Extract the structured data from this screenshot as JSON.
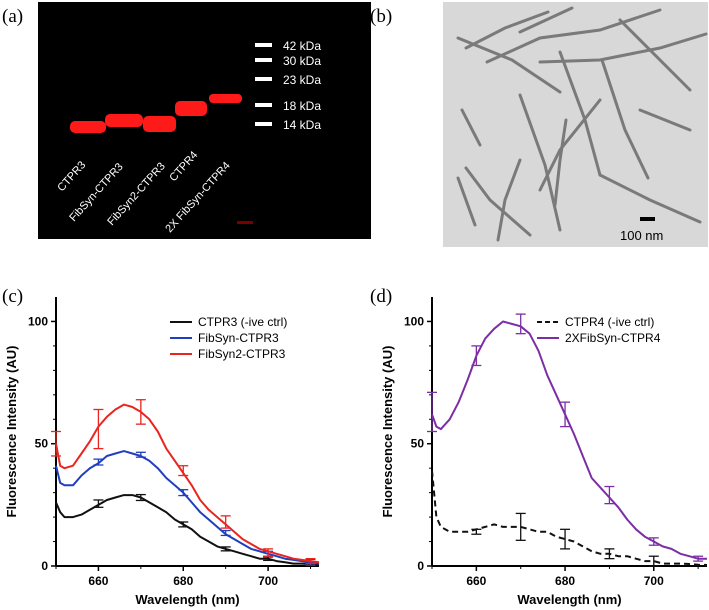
{
  "panel_letters": {
    "a": "(a)",
    "b": "(b)",
    "c": "(c)",
    "d": "(d)"
  },
  "gel": {
    "lane_labels": [
      "CTPR3",
      "FibSyn-CTPR3",
      "FibSyn2-CTPR3",
      "CTPR4",
      "2X FibSyn-CTPR4"
    ],
    "markers": [
      "42 kDa",
      "30 kDa",
      "23 kDa",
      "18 kDa",
      "14 kDa"
    ],
    "band_color": "#ff1a1a",
    "background": "#000000"
  },
  "micrograph": {
    "scale_bar_label": "100 nm"
  },
  "chart_data": [
    {
      "type": "line",
      "panel": "c",
      "xlabel": "Wavelength (nm)",
      "ylabel": "Fluorescence Intensity (AU)",
      "xlim": [
        650,
        712
      ],
      "ylim": [
        0,
        110
      ],
      "x_ticks": [
        660,
        680,
        700
      ],
      "y_ticks": [
        0,
        50,
        100
      ],
      "legend_position": "top-right",
      "series": [
        {
          "name": "CTPR3 (-ive ctrl)",
          "color": "#111111",
          "dash": "solid",
          "x": [
            650,
            651,
            652,
            654,
            656,
            658,
            660,
            662,
            664,
            666,
            668,
            670,
            672,
            674,
            676,
            678,
            680,
            682,
            684,
            686,
            688,
            690,
            692,
            694,
            696,
            698,
            700,
            702,
            704,
            706,
            708,
            710,
            712
          ],
          "y": [
            26,
            22,
            20,
            20,
            21,
            23,
            25,
            27,
            28,
            29,
            29,
            28,
            26,
            24,
            22,
            19,
            17,
            15,
            12,
            10,
            8,
            7,
            6,
            5,
            4,
            3,
            3,
            2,
            1.5,
            1,
            1,
            0.8,
            0.6
          ],
          "error_bars": [
            {
              "x": 660,
              "y": 25.5,
              "err": 1.5
            },
            {
              "x": 670,
              "y": 28,
              "err": 1.2
            },
            {
              "x": 680,
              "y": 17,
              "err": 1
            },
            {
              "x": 690,
              "y": 7,
              "err": 0.8
            },
            {
              "x": 700,
              "y": 3,
              "err": 0.7
            },
            {
              "x": 710,
              "y": 0.8,
              "err": 0.5
            }
          ]
        },
        {
          "name": "FibSyn-CTPR3",
          "color": "#1f3fbf",
          "dash": "solid",
          "x": [
            650,
            651,
            652,
            654,
            656,
            658,
            660,
            662,
            664,
            666,
            668,
            670,
            672,
            674,
            676,
            678,
            680,
            682,
            684,
            686,
            688,
            690,
            692,
            694,
            696,
            698,
            700,
            702,
            704,
            706,
            708,
            710,
            712
          ],
          "y": [
            41,
            34,
            33,
            33,
            37,
            40,
            42,
            45,
            46,
            47,
            46,
            45,
            43,
            40,
            36,
            33,
            30,
            26,
            22,
            19,
            16,
            13,
            11,
            9,
            7,
            6,
            5,
            4,
            3,
            2.5,
            2,
            1.5,
            1
          ],
          "error_bars": [
            {
              "x": 660,
              "y": 42.5,
              "err": 1.2
            },
            {
              "x": 670,
              "y": 45.5,
              "err": 1
            },
            {
              "x": 680,
              "y": 30,
              "err": 1.2
            },
            {
              "x": 690,
              "y": 13.5,
              "err": 1
            },
            {
              "x": 700,
              "y": 5,
              "err": 1
            },
            {
              "x": 710,
              "y": 1.5,
              "err": 1.2
            }
          ]
        },
        {
          "name": "FibSyn2-CTPR3",
          "color": "#e8261f",
          "dash": "solid",
          "x": [
            650,
            651,
            652,
            654,
            656,
            658,
            660,
            662,
            664,
            666,
            668,
            670,
            672,
            674,
            676,
            678,
            680,
            682,
            684,
            686,
            688,
            690,
            692,
            694,
            696,
            698,
            700,
            702,
            704,
            706,
            708,
            710,
            712
          ],
          "y": [
            50,
            41,
            40,
            41,
            46,
            51,
            57,
            61,
            64,
            66,
            65,
            63,
            60,
            55,
            48,
            43,
            38,
            33,
            27,
            23,
            20,
            17,
            14,
            11,
            9,
            7,
            6,
            5,
            4,
            3,
            2.5,
            2,
            1.5
          ],
          "error_bars": [
            {
              "x": 650,
              "y": 50,
              "err": 5
            },
            {
              "x": 660,
              "y": 56,
              "err": 8
            },
            {
              "x": 670,
              "y": 63,
              "err": 5
            },
            {
              "x": 680,
              "y": 39,
              "err": 2
            },
            {
              "x": 690,
              "y": 18,
              "err": 2.5
            },
            {
              "x": 700,
              "y": 5.5,
              "err": 1.5
            },
            {
              "x": 710,
              "y": 2,
              "err": 1
            }
          ]
        }
      ]
    },
    {
      "type": "line",
      "panel": "d",
      "xlabel": "Wavelength (nm)",
      "ylabel": "Fluorescence Intensity (AU)",
      "xlim": [
        650,
        712
      ],
      "ylim": [
        0,
        110
      ],
      "x_ticks": [
        660,
        680,
        700
      ],
      "y_ticks": [
        0,
        50,
        100
      ],
      "legend_position": "top-right",
      "series": [
        {
          "name": "CTPR4 (-ive ctrl)",
          "color": "#111111",
          "dash": "dashed",
          "x": [
            650,
            651,
            652,
            654,
            656,
            658,
            660,
            662,
            664,
            666,
            668,
            670,
            672,
            674,
            676,
            678,
            680,
            682,
            684,
            686,
            688,
            690,
            692,
            694,
            696,
            698,
            700,
            702,
            704,
            706,
            708,
            710,
            712
          ],
          "y": [
            39,
            20,
            16,
            14,
            14,
            14,
            15,
            16,
            17,
            16,
            16,
            16,
            15,
            14,
            14,
            12,
            11,
            10,
            8,
            6,
            5,
            5,
            4,
            4,
            3,
            2,
            2,
            1,
            1,
            1,
            0.8,
            0.5,
            0.4
          ],
          "error_bars": [
            {
              "x": 660,
              "y": 14,
              "err": 1
            },
            {
              "x": 670,
              "y": 16,
              "err": 5.5
            },
            {
              "x": 680,
              "y": 11,
              "err": 4
            },
            {
              "x": 690,
              "y": 5,
              "err": 2
            },
            {
              "x": 700,
              "y": 2,
              "err": 2
            }
          ]
        },
        {
          "name": "2XFibSyn-CTPR4",
          "color": "#7b2ea5",
          "dash": "solid",
          "x": [
            650,
            651,
            652,
            654,
            656,
            658,
            660,
            662,
            664,
            666,
            668,
            670,
            672,
            674,
            676,
            678,
            680,
            682,
            684,
            686,
            688,
            690,
            692,
            694,
            696,
            698,
            700,
            702,
            704,
            706,
            708,
            710,
            712
          ],
          "y": [
            62,
            57,
            56,
            60,
            67,
            76,
            86,
            93,
            97,
            100,
            99,
            98,
            95,
            88,
            78,
            70,
            62,
            54,
            45,
            36,
            32,
            28,
            24,
            19,
            15,
            12,
            10,
            8,
            7,
            5,
            4,
            3,
            3
          ],
          "error_bars": [
            {
              "x": 650,
              "y": 63,
              "err": 8
            },
            {
              "x": 660,
              "y": 86,
              "err": 4
            },
            {
              "x": 670,
              "y": 99,
              "err": 4
            },
            {
              "x": 680,
              "y": 62,
              "err": 5
            },
            {
              "x": 690,
              "y": 29,
              "err": 3.5
            },
            {
              "x": 700,
              "y": 10,
              "err": 1.5
            },
            {
              "x": 710,
              "y": 3,
              "err": 1
            }
          ]
        }
      ]
    }
  ]
}
